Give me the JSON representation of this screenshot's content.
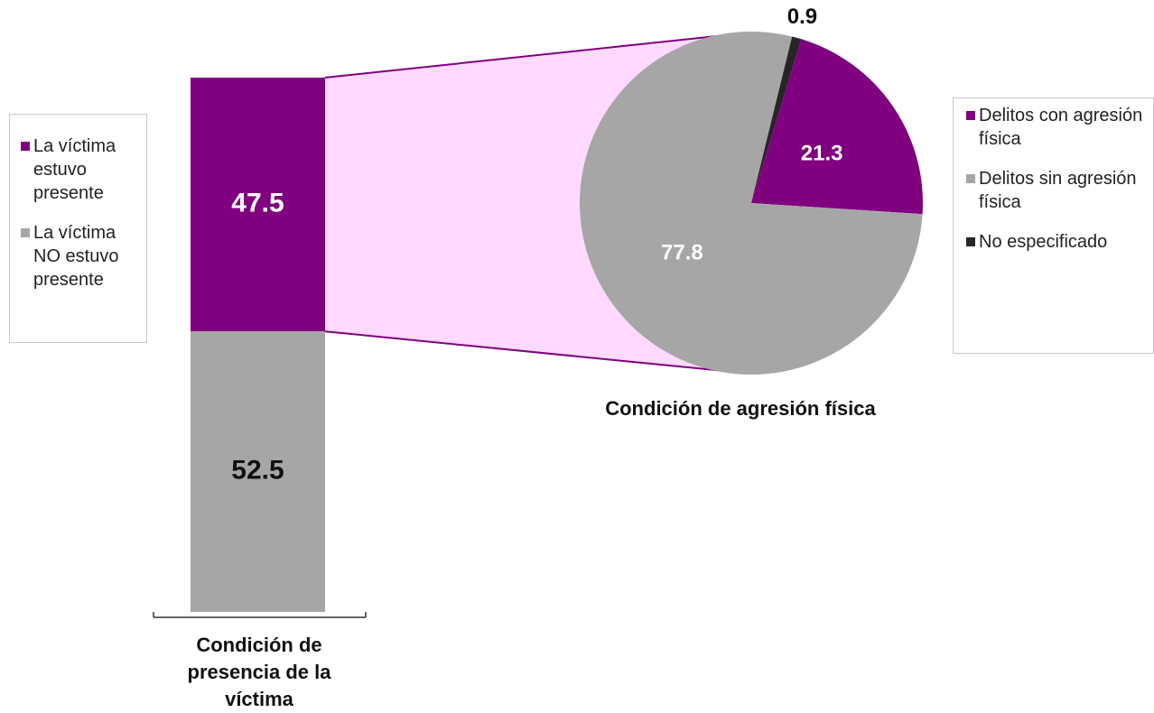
{
  "chart_data": [
    {
      "type": "bar",
      "stacked": true,
      "categories": [
        "Condición de presencia de la víctima"
      ],
      "series": [
        {
          "name": "La víctima estuvo presente",
          "color": "#800080",
          "values": [
            47.5
          ]
        },
        {
          "name": "La víctima NO estuvo presente",
          "color": "#a6a6a6",
          "values": [
            52.5
          ]
        }
      ]
    },
    {
      "type": "pie",
      "title": "Condición de agresión física",
      "categories": [
        "Delitos con agresión física",
        "Delitos sin agresión física",
        "No especificado"
      ],
      "values": [
        21.3,
        77.8,
        0.9
      ],
      "colors": [
        "#800080",
        "#a6a6a6",
        "#262626"
      ]
    }
  ]
}
